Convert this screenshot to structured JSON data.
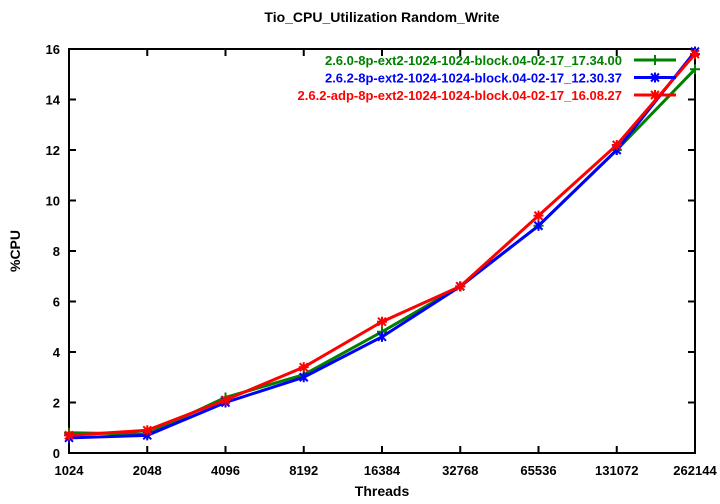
{
  "chart_data": {
    "type": "line",
    "title": "Tio_CPU_Utilization Random_Write",
    "xlabel": "Threads",
    "ylabel": "%CPU",
    "x_scale": "log2-categorical",
    "categories": [
      "1024",
      "2048",
      "4096",
      "8192",
      "16384",
      "32768",
      "65536",
      "131072",
      "262144"
    ],
    "ylim": [
      0,
      16
    ],
    "yticks": [
      0,
      2,
      4,
      6,
      8,
      10,
      12,
      14,
      16
    ],
    "grid": false,
    "legend_position": "top-right-inside",
    "background_color": "#ffffff",
    "axis_color": "#000000",
    "series": [
      {
        "name": "2.6.0-8p-ext2-1024-1024-block.04-02-17_17.34.00",
        "color": "#008000",
        "marker": "plus",
        "values": [
          0.8,
          0.75,
          2.2,
          3.1,
          4.8,
          6.6,
          9.0,
          12.0,
          15.2
        ]
      },
      {
        "name": "2.6.2-8p-ext2-1024-1024-block.04-02-17_12.30.37",
        "color": "#0000ff",
        "marker": "asterisk",
        "values": [
          0.6,
          0.7,
          2.0,
          3.0,
          4.6,
          6.6,
          9.0,
          12.0,
          15.9
        ]
      },
      {
        "name": "2.6.2-adp-8p-ext2-1024-1024-block.04-02-17_16.08.27",
        "color": "#ff0000",
        "marker": "star",
        "values": [
          0.7,
          0.9,
          2.1,
          3.4,
          5.2,
          6.6,
          9.4,
          12.2,
          15.8
        ]
      }
    ]
  }
}
